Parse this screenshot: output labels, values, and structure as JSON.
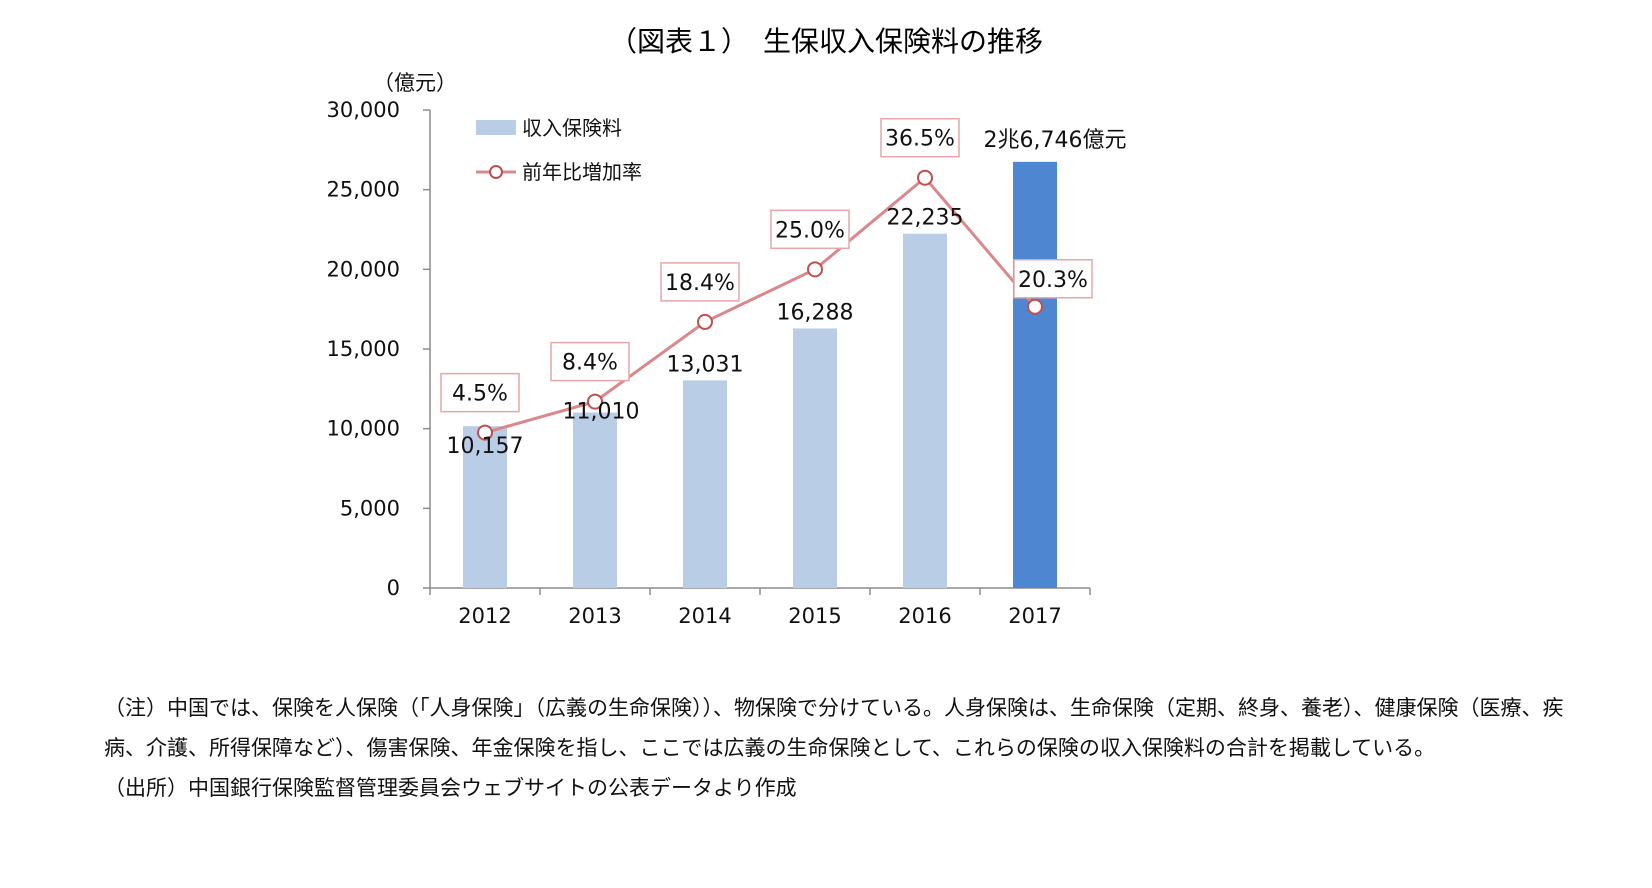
{
  "title": "（図表１）　生保収入保険料の推移",
  "chart_data": {
    "type": "bar+line",
    "y_unit": "（億元）",
    "ylim": [
      0,
      30000
    ],
    "y_ticks": [
      "0",
      "5,000",
      "10,000",
      "15,000",
      "20,000",
      "25,000",
      "30,000"
    ],
    "y_tick_values": [
      0,
      5000,
      10000,
      15000,
      20000,
      25000,
      30000
    ],
    "categories": [
      "2012",
      "2013",
      "2014",
      "2015",
      "2016",
      "2017"
    ],
    "legend_position": "top-left",
    "series": [
      {
        "name": "収入保険料",
        "kind": "bar",
        "values": [
          10157,
          11010,
          13031,
          16288,
          22235,
          26746
        ],
        "labels": [
          "10,157",
          "11,010",
          "13,031",
          "16,288",
          "22,235",
          "2兆6,746億元"
        ],
        "color": "#b9cde6",
        "highlight_color": "#4f86d2"
      },
      {
        "name": "前年比増加率",
        "kind": "line",
        "values": [
          4.5,
          8.4,
          18.4,
          25.0,
          36.5,
          20.3
        ],
        "labels": [
          "4.5%",
          "8.4%",
          "18.4%",
          "25.0%",
          "36.5%",
          "20.3%"
        ],
        "secondary_axis_ylim": [
          -15,
          45
        ],
        "color": "#d9888c"
      }
    ]
  },
  "notes": {
    "note": "（注）中国では、保険を人保険（「人身保険」（広義の生命保険））、物保険で分けている。人身保険は、生命保険（定期、終身、養老）、健康保険（医療、疾病、介護、所得保障など）、傷害保険、年金保険を指し、ここでは広義の生命保険として、これらの保険の収入保険料の合計を掲載している。",
    "source": "（出所）中国銀行保険監督管理委員会ウェブサイトの公表データより作成"
  }
}
